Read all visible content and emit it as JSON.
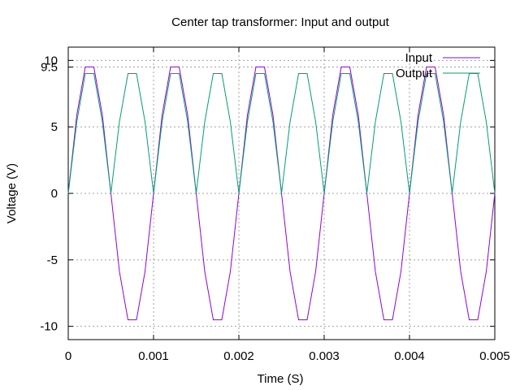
{
  "chart_data": {
    "type": "line",
    "title": "Center tap transformer: Input and output",
    "xlabel": "Time (S)",
    "ylabel": "Voltage (V)",
    "xlim": [
      0,
      0.005
    ],
    "ylim": [
      -11,
      11
    ],
    "x_ticks": [
      {
        "value": 0,
        "label": "0"
      },
      {
        "value": 0.001,
        "label": "0.001"
      },
      {
        "value": 0.002,
        "label": "0.002"
      },
      {
        "value": 0.003,
        "label": "0.003"
      },
      {
        "value": 0.004,
        "label": "0.004"
      },
      {
        "value": 0.005,
        "label": "0.005"
      }
    ],
    "y_ticks": [
      {
        "value": -10,
        "label": "-10"
      },
      {
        "value": -5,
        "label": "-5"
      },
      {
        "value": 0,
        "label": "0"
      },
      {
        "value": 5,
        "label": "5"
      },
      {
        "value": 9.5,
        "label": "9.5"
      },
      {
        "value": 10,
        "label": "10"
      }
    ],
    "grid": true,
    "legend_position": "top-right",
    "x": [
      0.0,
      0.0001,
      0.0002,
      0.0003,
      0.0004,
      0.0005,
      0.0006,
      0.0007,
      0.0008,
      0.0009,
      0.001,
      0.0011,
      0.0012,
      0.0013,
      0.0014,
      0.0015,
      0.0016,
      0.0017,
      0.0018,
      0.0019,
      0.002,
      0.0021,
      0.0022,
      0.0023,
      0.0024,
      0.0025,
      0.0026,
      0.0027,
      0.0028,
      0.0029,
      0.003,
      0.0031,
      0.0032,
      0.0033,
      0.0034,
      0.0035,
      0.0036,
      0.0037,
      0.0038,
      0.0039,
      0.004,
      0.0041,
      0.0042,
      0.0043,
      0.0044,
      0.0045,
      0.0046,
      0.0047,
      0.0048,
      0.0049,
      0.005
    ],
    "series": [
      {
        "name": "Input",
        "color": "#9400d3",
        "values": [
          0.0,
          5.88,
          9.51,
          9.51,
          5.88,
          0.0,
          -5.88,
          -9.51,
          -9.51,
          -5.88,
          0.0,
          5.88,
          9.51,
          9.51,
          5.88,
          0.0,
          -5.88,
          -9.51,
          -9.51,
          -5.88,
          0.0,
          5.88,
          9.51,
          9.51,
          5.88,
          0.0,
          -5.88,
          -9.51,
          -9.51,
          -5.88,
          0.0,
          5.88,
          9.51,
          9.51,
          5.88,
          0.0,
          -5.88,
          -9.51,
          -9.51,
          -5.88,
          0.0,
          5.88,
          9.51,
          9.51,
          5.88,
          0.0,
          -5.88,
          -9.51,
          -9.51,
          -5.88,
          0.0
        ]
      },
      {
        "name": "Output",
        "color": "#009e73",
        "values": [
          0.0,
          5.38,
          9.01,
          9.01,
          5.38,
          0.0,
          5.38,
          9.01,
          9.01,
          5.38,
          0.0,
          5.38,
          9.01,
          9.01,
          5.38,
          0.0,
          5.38,
          9.01,
          9.01,
          5.38,
          0.0,
          5.38,
          9.01,
          9.01,
          5.38,
          0.0,
          5.38,
          9.01,
          9.01,
          5.38,
          0.0,
          5.38,
          9.01,
          9.01,
          5.38,
          0.0,
          5.38,
          9.01,
          9.01,
          5.38,
          0.0,
          5.38,
          9.01,
          9.01,
          5.38,
          0.0,
          5.38,
          9.01,
          9.01,
          5.38,
          0.0
        ]
      }
    ]
  }
}
